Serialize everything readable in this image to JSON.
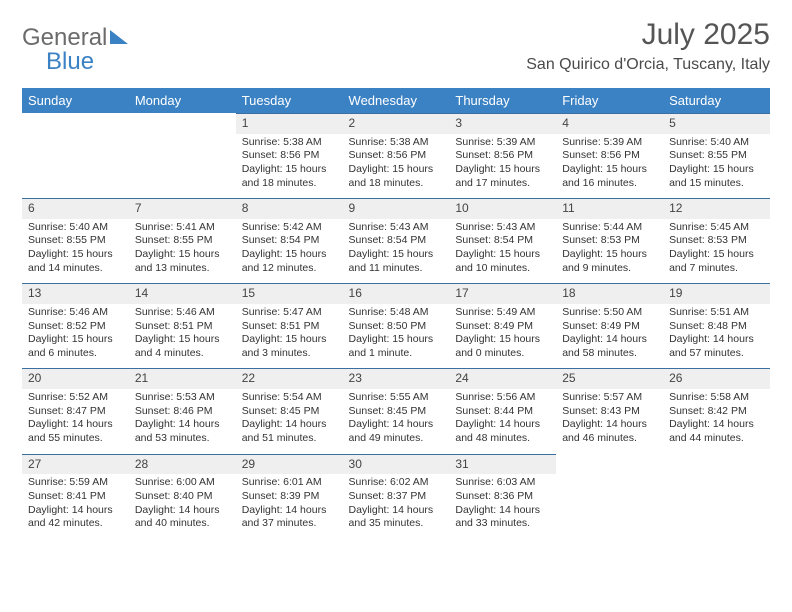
{
  "logo": {
    "word1": "General",
    "word2": "Blue"
  },
  "month_title": "July 2025",
  "location": "San Quirico d'Orcia, Tuscany, Italy",
  "day_headers": [
    "Sunday",
    "Monday",
    "Tuesday",
    "Wednesday",
    "Thursday",
    "Friday",
    "Saturday"
  ],
  "colors": {
    "header_bg": "#3b82c4",
    "header_fg": "#ffffff",
    "rule": "#3b6fa0",
    "daynum_bg": "#efefef",
    "logo_gray": "#6b6b6b",
    "logo_blue": "#3b82c4"
  },
  "weeks": [
    [
      {
        "blank": true
      },
      {
        "blank": true
      },
      {
        "n": "1",
        "sr": "Sunrise: 5:38 AM",
        "ss": "Sunset: 8:56 PM",
        "d1": "Daylight: 15 hours",
        "d2": "and 18 minutes."
      },
      {
        "n": "2",
        "sr": "Sunrise: 5:38 AM",
        "ss": "Sunset: 8:56 PM",
        "d1": "Daylight: 15 hours",
        "d2": "and 18 minutes."
      },
      {
        "n": "3",
        "sr": "Sunrise: 5:39 AM",
        "ss": "Sunset: 8:56 PM",
        "d1": "Daylight: 15 hours",
        "d2": "and 17 minutes."
      },
      {
        "n": "4",
        "sr": "Sunrise: 5:39 AM",
        "ss": "Sunset: 8:56 PM",
        "d1": "Daylight: 15 hours",
        "d2": "and 16 minutes."
      },
      {
        "n": "5",
        "sr": "Sunrise: 5:40 AM",
        "ss": "Sunset: 8:55 PM",
        "d1": "Daylight: 15 hours",
        "d2": "and 15 minutes."
      }
    ],
    [
      {
        "n": "6",
        "sr": "Sunrise: 5:40 AM",
        "ss": "Sunset: 8:55 PM",
        "d1": "Daylight: 15 hours",
        "d2": "and 14 minutes."
      },
      {
        "n": "7",
        "sr": "Sunrise: 5:41 AM",
        "ss": "Sunset: 8:55 PM",
        "d1": "Daylight: 15 hours",
        "d2": "and 13 minutes."
      },
      {
        "n": "8",
        "sr": "Sunrise: 5:42 AM",
        "ss": "Sunset: 8:54 PM",
        "d1": "Daylight: 15 hours",
        "d2": "and 12 minutes."
      },
      {
        "n": "9",
        "sr": "Sunrise: 5:43 AM",
        "ss": "Sunset: 8:54 PM",
        "d1": "Daylight: 15 hours",
        "d2": "and 11 minutes."
      },
      {
        "n": "10",
        "sr": "Sunrise: 5:43 AM",
        "ss": "Sunset: 8:54 PM",
        "d1": "Daylight: 15 hours",
        "d2": "and 10 minutes."
      },
      {
        "n": "11",
        "sr": "Sunrise: 5:44 AM",
        "ss": "Sunset: 8:53 PM",
        "d1": "Daylight: 15 hours",
        "d2": "and 9 minutes."
      },
      {
        "n": "12",
        "sr": "Sunrise: 5:45 AM",
        "ss": "Sunset: 8:53 PM",
        "d1": "Daylight: 15 hours",
        "d2": "and 7 minutes."
      }
    ],
    [
      {
        "n": "13",
        "sr": "Sunrise: 5:46 AM",
        "ss": "Sunset: 8:52 PM",
        "d1": "Daylight: 15 hours",
        "d2": "and 6 minutes."
      },
      {
        "n": "14",
        "sr": "Sunrise: 5:46 AM",
        "ss": "Sunset: 8:51 PM",
        "d1": "Daylight: 15 hours",
        "d2": "and 4 minutes."
      },
      {
        "n": "15",
        "sr": "Sunrise: 5:47 AM",
        "ss": "Sunset: 8:51 PM",
        "d1": "Daylight: 15 hours",
        "d2": "and 3 minutes."
      },
      {
        "n": "16",
        "sr": "Sunrise: 5:48 AM",
        "ss": "Sunset: 8:50 PM",
        "d1": "Daylight: 15 hours",
        "d2": "and 1 minute."
      },
      {
        "n": "17",
        "sr": "Sunrise: 5:49 AM",
        "ss": "Sunset: 8:49 PM",
        "d1": "Daylight: 15 hours",
        "d2": "and 0 minutes."
      },
      {
        "n": "18",
        "sr": "Sunrise: 5:50 AM",
        "ss": "Sunset: 8:49 PM",
        "d1": "Daylight: 14 hours",
        "d2": "and 58 minutes."
      },
      {
        "n": "19",
        "sr": "Sunrise: 5:51 AM",
        "ss": "Sunset: 8:48 PM",
        "d1": "Daylight: 14 hours",
        "d2": "and 57 minutes."
      }
    ],
    [
      {
        "n": "20",
        "sr": "Sunrise: 5:52 AM",
        "ss": "Sunset: 8:47 PM",
        "d1": "Daylight: 14 hours",
        "d2": "and 55 minutes."
      },
      {
        "n": "21",
        "sr": "Sunrise: 5:53 AM",
        "ss": "Sunset: 8:46 PM",
        "d1": "Daylight: 14 hours",
        "d2": "and 53 minutes."
      },
      {
        "n": "22",
        "sr": "Sunrise: 5:54 AM",
        "ss": "Sunset: 8:45 PM",
        "d1": "Daylight: 14 hours",
        "d2": "and 51 minutes."
      },
      {
        "n": "23",
        "sr": "Sunrise: 5:55 AM",
        "ss": "Sunset: 8:45 PM",
        "d1": "Daylight: 14 hours",
        "d2": "and 49 minutes."
      },
      {
        "n": "24",
        "sr": "Sunrise: 5:56 AM",
        "ss": "Sunset: 8:44 PM",
        "d1": "Daylight: 14 hours",
        "d2": "and 48 minutes."
      },
      {
        "n": "25",
        "sr": "Sunrise: 5:57 AM",
        "ss": "Sunset: 8:43 PM",
        "d1": "Daylight: 14 hours",
        "d2": "and 46 minutes."
      },
      {
        "n": "26",
        "sr": "Sunrise: 5:58 AM",
        "ss": "Sunset: 8:42 PM",
        "d1": "Daylight: 14 hours",
        "d2": "and 44 minutes."
      }
    ],
    [
      {
        "n": "27",
        "sr": "Sunrise: 5:59 AM",
        "ss": "Sunset: 8:41 PM",
        "d1": "Daylight: 14 hours",
        "d2": "and 42 minutes."
      },
      {
        "n": "28",
        "sr": "Sunrise: 6:00 AM",
        "ss": "Sunset: 8:40 PM",
        "d1": "Daylight: 14 hours",
        "d2": "and 40 minutes."
      },
      {
        "n": "29",
        "sr": "Sunrise: 6:01 AM",
        "ss": "Sunset: 8:39 PM",
        "d1": "Daylight: 14 hours",
        "d2": "and 37 minutes."
      },
      {
        "n": "30",
        "sr": "Sunrise: 6:02 AM",
        "ss": "Sunset: 8:37 PM",
        "d1": "Daylight: 14 hours",
        "d2": "and 35 minutes."
      },
      {
        "n": "31",
        "sr": "Sunrise: 6:03 AM",
        "ss": "Sunset: 8:36 PM",
        "d1": "Daylight: 14 hours",
        "d2": "and 33 minutes."
      },
      {
        "blank": true
      },
      {
        "blank": true
      }
    ]
  ]
}
